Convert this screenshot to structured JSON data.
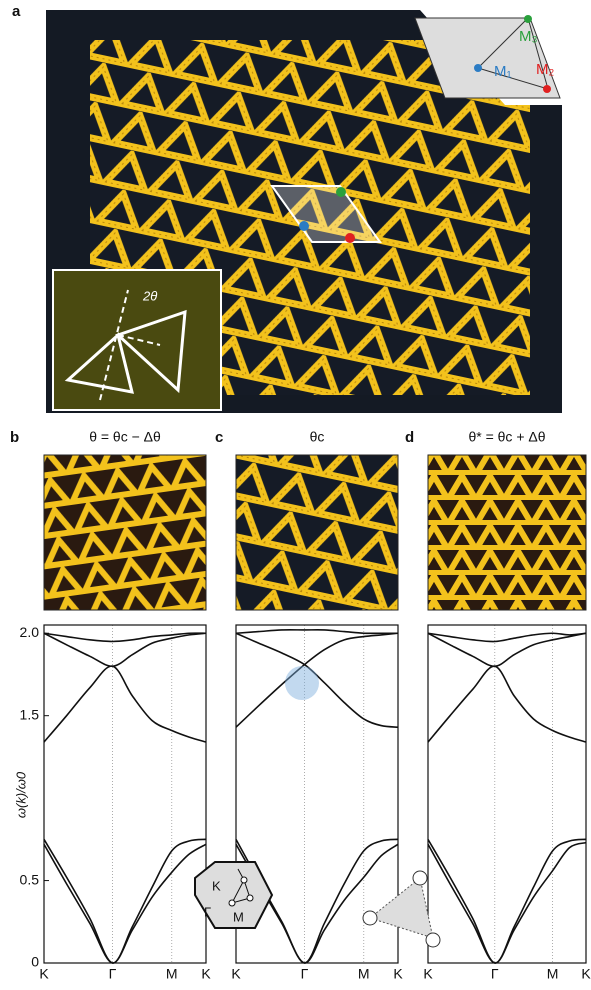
{
  "panel_labels": [
    "a",
    "b",
    "c",
    "d"
  ],
  "photo_a": {
    "unit_cell": [
      "M₁",
      "M₂",
      "M₃"
    ],
    "angle": "2θ"
  },
  "inset_bz": [
    "K",
    "Γ",
    "M"
  ],
  "chart_data": [
    {
      "type": "line",
      "title": "θ = θc − Δθ",
      "ylabel": "ω(k)/ω0",
      "x": [
        0,
        0.33,
        0.67,
        1,
        1.29,
        1.58,
        1.866,
        2.12,
        2.366
      ],
      "xlim": [
        0,
        2.366
      ],
      "xticks": [
        {
          "value": 0,
          "label": "K"
        },
        {
          "value": 1,
          "label": "Γ"
        },
        {
          "value": 1.866,
          "label": "M"
        },
        {
          "value": 2.366,
          "label": "K"
        }
      ],
      "ylim": [
        0,
        2.05
      ],
      "yticks": [
        0,
        0.5,
        1.5,
        {
          "value": 2,
          "label": "2.0"
        }
      ],
      "series": [
        {
          "color": "#111111",
          "values": [
            0.72,
            0.48,
            0.24,
            0,
            0.2,
            0.4,
            0.55,
            0.66,
            0.72
          ]
        },
        {
          "color": "#111111",
          "values": [
            0.75,
            0.52,
            0.27,
            0,
            0.22,
            0.46,
            0.68,
            0.74,
            0.75
          ]
        },
        {
          "color": "#111111",
          "values": [
            1.34,
            1.5,
            1.67,
            1.8,
            1.62,
            1.47,
            1.41,
            1.37,
            1.34
          ]
        },
        {
          "color": "#111111",
          "values": [
            2.0,
            1.93,
            1.86,
            1.8,
            1.87,
            1.94,
            1.97,
            1.99,
            2.0
          ]
        },
        {
          "color": "#111111",
          "values": [
            2.0,
            1.98,
            1.96,
            1.95,
            1.96,
            1.98,
            1.99,
            2.0,
            2.0
          ]
        }
      ]
    },
    {
      "type": "line",
      "title": "θc",
      "x": [
        0,
        0.33,
        0.67,
        1,
        1.29,
        1.58,
        1.866,
        2.12,
        2.366
      ],
      "xlim": [
        0,
        2.366
      ],
      "xticks": [
        {
          "value": 0,
          "label": "K"
        },
        {
          "value": 1,
          "label": "Γ"
        },
        {
          "value": 1.866,
          "label": "M"
        },
        {
          "value": 2.366,
          "label": "K"
        }
      ],
      "ylim": [
        0,
        2.05
      ],
      "series": [
        {
          "color": "#111111",
          "values": [
            0.72,
            0.48,
            0.24,
            0,
            0.2,
            0.38,
            0.52,
            0.65,
            0.72
          ]
        },
        {
          "color": "#111111",
          "values": [
            0.75,
            0.5,
            0.25,
            0,
            0.24,
            0.48,
            0.68,
            0.74,
            0.75
          ]
        },
        {
          "color": "#111111",
          "values": [
            1.43,
            1.56,
            1.69,
            1.81,
            1.9,
            1.96,
            1.98,
            1.99,
            2.0
          ]
        },
        {
          "color": "#111111",
          "values": [
            2.0,
            1.94,
            1.88,
            1.81,
            1.7,
            1.58,
            1.48,
            1.44,
            1.43
          ]
        },
        {
          "color": "#111111",
          "values": [
            2.0,
            2.01,
            2.02,
            2.02,
            2.02,
            2.01,
            2.0,
            2.0,
            2.0
          ]
        }
      ]
    },
    {
      "type": "line",
      "title": "θ* = θc + Δθ",
      "x": [
        0,
        0.33,
        0.67,
        1,
        1.29,
        1.58,
        1.866,
        2.12,
        2.366
      ],
      "xlim": [
        0,
        2.366
      ],
      "xticks": [
        {
          "value": 0,
          "label": "K"
        },
        {
          "value": 1,
          "label": "Γ"
        },
        {
          "value": 1.866,
          "label": "M"
        },
        {
          "value": 2.366,
          "label": "K"
        }
      ],
      "ylim": [
        0,
        2.05
      ],
      "series": [
        {
          "color": "#111111",
          "values": [
            0.72,
            0.48,
            0.24,
            0,
            0.2,
            0.4,
            0.56,
            0.7,
            0.73
          ]
        },
        {
          "color": "#111111",
          "values": [
            0.75,
            0.52,
            0.27,
            0,
            0.22,
            0.46,
            0.68,
            0.74,
            0.75
          ]
        },
        {
          "color": "#111111",
          "values": [
            1.34,
            1.5,
            1.66,
            1.8,
            1.62,
            1.48,
            1.41,
            1.37,
            1.34
          ]
        },
        {
          "color": "#111111",
          "values": [
            2.0,
            1.93,
            1.86,
            1.8,
            1.87,
            1.93,
            1.96,
            1.98,
            2.0
          ]
        },
        {
          "color": "#111111",
          "values": [
            2.0,
            1.98,
            1.96,
            1.95,
            1.97,
            1.99,
            2.0,
            1.99,
            2.0
          ]
        }
      ]
    }
  ]
}
